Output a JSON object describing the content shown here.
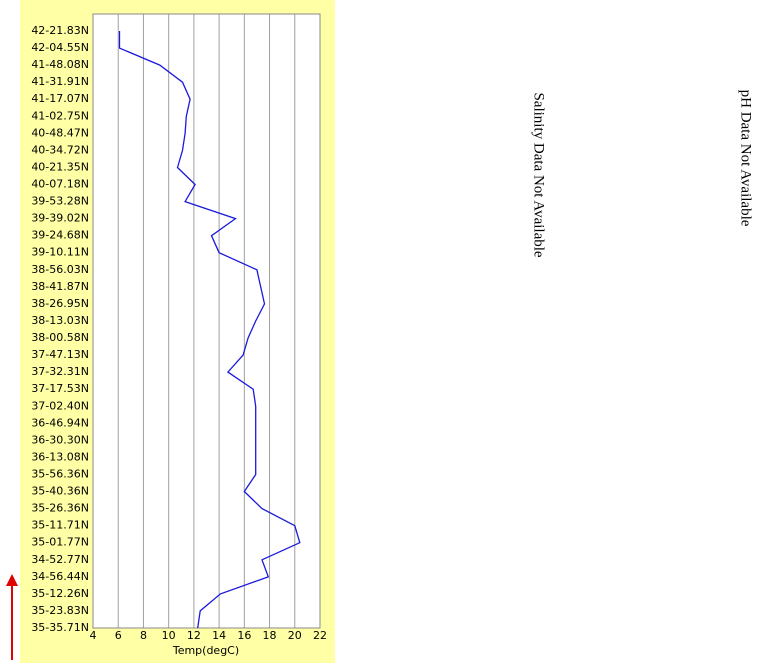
{
  "chart_data": {
    "type": "line",
    "xlabel": "Temp(degC)",
    "categories": [
      "42-21.83N",
      "42-04.55N",
      "41-48.08N",
      "41-31.91N",
      "41-17.07N",
      "41-02.75N",
      "40-48.47N",
      "40-34.72N",
      "40-21.35N",
      "40-07.18N",
      "39-53.28N",
      "39-39.02N",
      "39-24.68N",
      "39-10.11N",
      "38-56.03N",
      "38-41.87N",
      "38-26.95N",
      "38-13.03N",
      "38-00.58N",
      "37-47.13N",
      "37-32.31N",
      "37-17.53N",
      "37-02.40N",
      "36-46.94N",
      "36-30.30N",
      "36-13.08N",
      "35-56.36N",
      "35-40.36N",
      "35-26.36N",
      "35-11.71N",
      "35-01.77N",
      "34-52.77N",
      "34-56.44N",
      "35-12.26N",
      "35-23.83N",
      "35-35.71N"
    ],
    "series": [
      {
        "color": "#1a1adb",
        "values": [
          6.1,
          6.1,
          9.3,
          11.1,
          11.7,
          11.4,
          11.3,
          11.1,
          10.7,
          12.1,
          11.3,
          15.3,
          13.4,
          14.0,
          17.0,
          17.3,
          17.6,
          16.9,
          16.3,
          15.9,
          14.7,
          16.7,
          16.9,
          16.9,
          16.9,
          16.9,
          16.9,
          16.0,
          17.4,
          20.0,
          20.4,
          17.4,
          17.9,
          14.1,
          12.5,
          12.3
        ]
      }
    ],
    "xlim": [
      4,
      22
    ],
    "xticks": [
      4,
      6,
      8,
      10,
      12,
      14,
      16,
      18,
      20,
      22
    ],
    "grid": true,
    "annotations": [
      "Salinity Data Not Available",
      "pH Data Not Available"
    ]
  }
}
